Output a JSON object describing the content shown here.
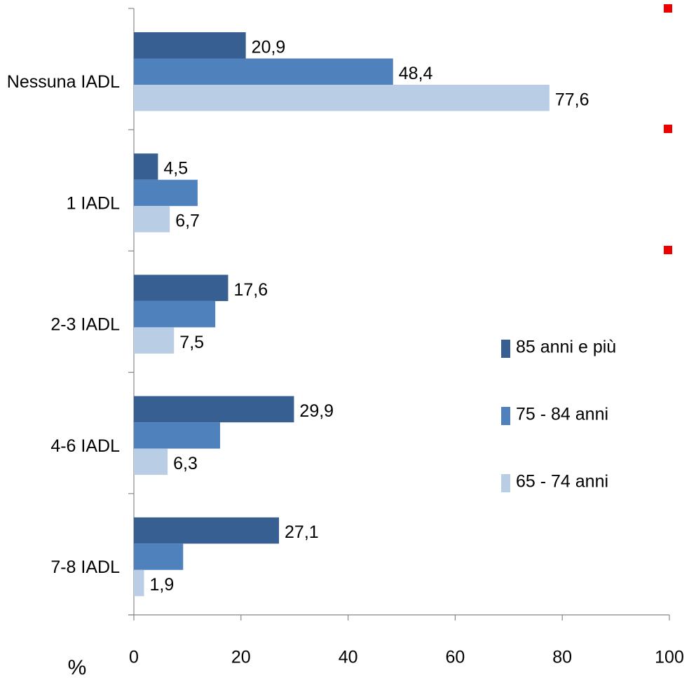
{
  "chart_data": {
    "type": "barh",
    "axis_label": "%",
    "categories": [
      "Nessuna IADL",
      "1 IADL",
      "2-3 IADL",
      "4-6 IADL",
      "7-8 IADL"
    ],
    "series": [
      {
        "name": "85 anni e più",
        "color": "#375f92",
        "values": [
          20.9,
          4.5,
          17.6,
          29.9,
          27.1
        ],
        "value_labels": [
          "20,9",
          "4,5",
          "17,6",
          "29,9",
          "27,1"
        ]
      },
      {
        "name": "75 - 84 anni",
        "color": "#4f81bd",
        "values": [
          48.4,
          11.9,
          15.2,
          16.1,
          9.2
        ],
        "value_labels": [
          "48,4",
          null,
          null,
          null,
          null
        ]
      },
      {
        "name": "65 - 74 anni",
        "color": "#b9cde5",
        "values": [
          77.6,
          6.7,
          7.5,
          6.3,
          1.9
        ],
        "value_labels": [
          "77,6",
          "6,7",
          "7,5",
          "6,3",
          "1,9"
        ]
      }
    ],
    "xlim": [
      0,
      100
    ],
    "xticks": [
      0,
      20,
      40,
      60,
      80,
      100
    ],
    "legend": "right"
  }
}
